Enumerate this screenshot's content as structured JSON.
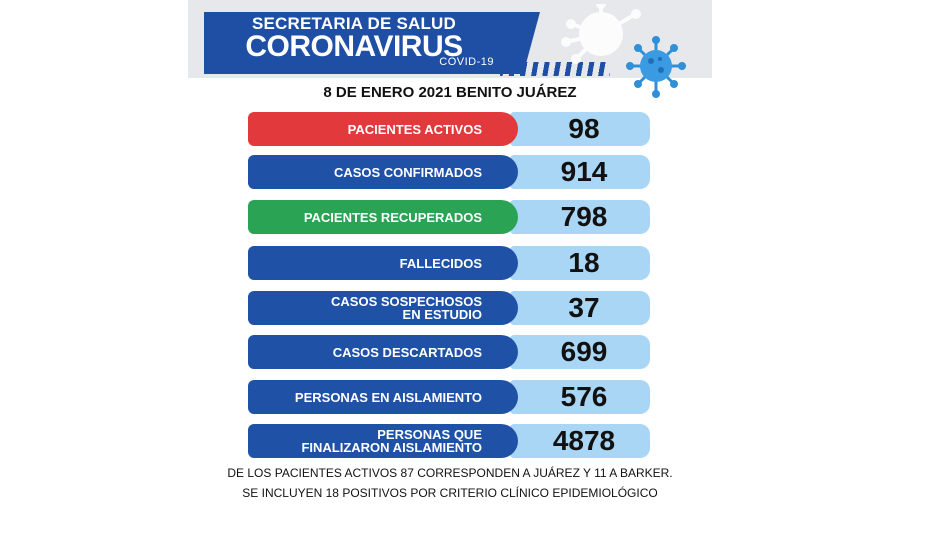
{
  "header": {
    "line1": "SECRETARIA DE SALUD",
    "line2": "CORONAVIRUS",
    "line3": "COVID-19"
  },
  "report_date": "8 DE ENERO 2021 BENITO JUÁREZ",
  "stats": [
    {
      "label": "PACIENTES ACTIVOS",
      "value": "98",
      "color": "#e2393d"
    },
    {
      "label": "CASOS CONFIRMADOS",
      "value": "914",
      "color": "#1f52a6"
    },
    {
      "label": "PACIENTES RECUPERADOS",
      "value": "798",
      "color": "#2aa454"
    },
    {
      "label": "FALLECIDOS",
      "value": "18",
      "color": "#1f52a6"
    },
    {
      "label_line1": "CASOS SOSPECHOSOS",
      "label_line2": "EN ESTUDIO",
      "value": "37",
      "color": "#1f52a6"
    },
    {
      "label": "CASOS DESCARTADOS",
      "value": "699",
      "color": "#1f52a6"
    },
    {
      "label": "PERSONAS EN AISLAMIENTO",
      "value": "576",
      "color": "#1f52a6"
    },
    {
      "label_line1": "PERSONAS QUE",
      "label_line2": "FINALIZARON AISLAMIENTO",
      "value": "4878",
      "color": "#1f52a6"
    }
  ],
  "footnotes": [
    "DE LOS PACIENTES ACTIVOS 87 CORRESPONDEN A JUÁREZ Y 11 A BARKER.",
    "SE INCLUYEN 18 POSITIVOS  POR  CRITERIO CLÍNICO EPIDEMIOLÓGICO"
  ],
  "icons": {
    "virus": "virus-icon"
  },
  "colors": {
    "value_box": "#a9d6f5",
    "header_blue": "#1e4fa4"
  }
}
